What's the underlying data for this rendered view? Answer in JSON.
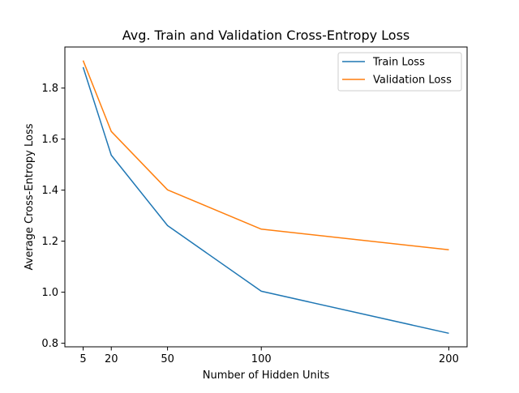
{
  "chart_data": {
    "type": "line",
    "title": "Avg. Train and Validation Cross-Entropy Loss",
    "xlabel": "Number of Hidden Units",
    "ylabel": "Average Cross-Entropy Loss",
    "x": [
      5,
      20,
      50,
      100,
      200
    ],
    "x_ticks": [
      "5",
      "20",
      "50",
      "100",
      "200"
    ],
    "y_ticks": [
      "0.8",
      "1.0",
      "1.2",
      "1.4",
      "1.6",
      "1.8"
    ],
    "y_tick_values": [
      0.8,
      1.0,
      1.2,
      1.4,
      1.6,
      1.8
    ],
    "xlim": [
      -4.75,
      209.75
    ],
    "ylim": [
      0.786,
      1.961
    ],
    "grid": false,
    "legend_position": "upper right",
    "series": [
      {
        "name": "Train Loss",
        "color": "#1f77b4",
        "values": [
          1.882,
          1.537,
          1.261,
          1.004,
          0.839
        ]
      },
      {
        "name": "Validation Loss",
        "color": "#ff7f0e",
        "values": [
          1.908,
          1.63,
          1.401,
          1.247,
          1.166
        ]
      }
    ]
  }
}
